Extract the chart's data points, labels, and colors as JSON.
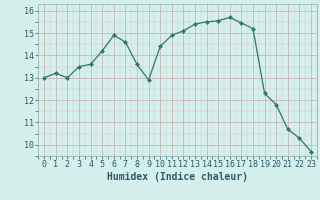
{
  "x": [
    0,
    1,
    2,
    3,
    4,
    5,
    6,
    7,
    8,
    9,
    10,
    11,
    12,
    13,
    14,
    15,
    16,
    17,
    18,
    19,
    20,
    21,
    22,
    23
  ],
  "y": [
    13.0,
    13.2,
    13.0,
    13.5,
    13.6,
    14.2,
    14.9,
    14.6,
    13.6,
    12.9,
    14.4,
    14.9,
    15.1,
    15.4,
    15.5,
    15.55,
    15.7,
    15.45,
    15.2,
    12.3,
    11.8,
    10.7,
    10.3,
    9.7
  ],
  "line_color": "#2d7a6a",
  "marker_color": "#2d7a6a",
  "bg_color": "#d5efed",
  "grid_color_major": "#b8cece",
  "grid_color_minor": "#cce3e1",
  "xlabel": "Humidex (Indice chaleur)",
  "xlabel_fontsize": 7,
  "tick_color": "#2d5a6a",
  "tick_fontsize": 6,
  "ylim": [
    9.5,
    16.3
  ],
  "yticks": [
    10,
    11,
    12,
    13,
    14,
    15,
    16
  ],
  "xlim": [
    -0.5,
    23.5
  ]
}
